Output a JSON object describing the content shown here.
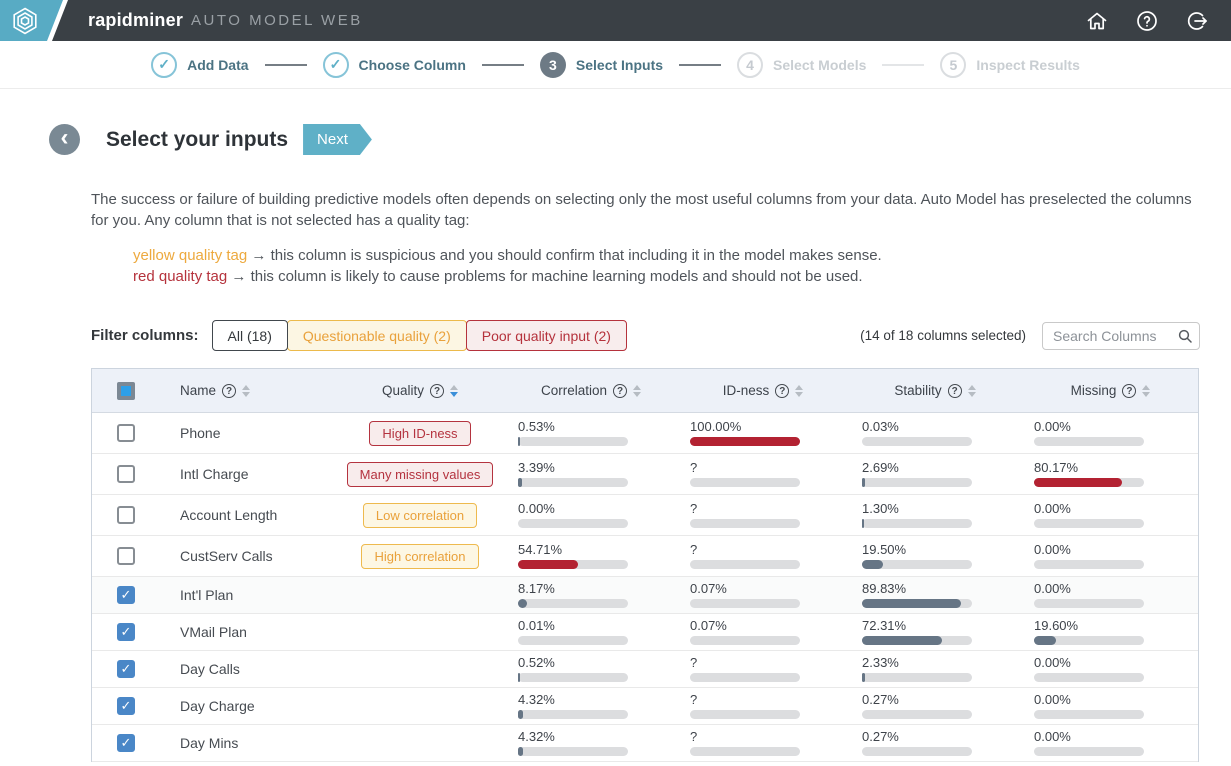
{
  "app": {
    "brand": "rapidminer",
    "brand_suffix": "AUTO MODEL WEB",
    "topbar_icons": [
      "home-icon",
      "help-icon",
      "sign-out-icon"
    ]
  },
  "stepper": {
    "steps": [
      {
        "label": "Add Data",
        "state": "done"
      },
      {
        "label": "Choose Column",
        "state": "done"
      },
      {
        "label": "Select Inputs",
        "state": "current",
        "number": "3"
      },
      {
        "label": "Select Models",
        "state": "pending",
        "number": "4"
      },
      {
        "label": "Inspect Results",
        "state": "pending",
        "number": "5"
      }
    ]
  },
  "page": {
    "title": "Select your inputs",
    "next_label": "Next",
    "description": "The success or failure of building predictive models often depends on selecting only the most useful columns from your data. Auto Model has preselected the columns for you. Any column that is not selected has a quality tag:",
    "legend": [
      {
        "tag": "yellow quality tag",
        "type": "yellow",
        "text": " → this column is suspicious and you should confirm that including it in the model makes sense."
      },
      {
        "tag": "red quality tag",
        "type": "red",
        "text": " → this column is likely to cause problems for machine learning models and should not be used."
      }
    ]
  },
  "filter": {
    "label": "Filter columns:",
    "buttons": [
      {
        "label": "All (18)",
        "type": "all",
        "selected": true
      },
      {
        "label": "Questionable quality (2)",
        "type": "yellow",
        "selected": false
      },
      {
        "label": "Poor quality input (2)",
        "type": "red",
        "selected": false
      }
    ],
    "selection_summary": "(14 of 18 columns selected)",
    "search_placeholder": "Search Columns"
  },
  "table": {
    "headers": [
      {
        "label": "Name"
      },
      {
        "label": "Quality",
        "sorted": "desc"
      },
      {
        "label": "Correlation"
      },
      {
        "label": "ID-ness"
      },
      {
        "label": "Stability"
      },
      {
        "label": "Missing"
      }
    ],
    "header_checkbox_state": "indeterminate",
    "rows": [
      {
        "name": "Phone",
        "checked": false,
        "tag": {
          "label": "High ID-ness",
          "type": "red"
        },
        "metrics": {
          "correlation": {
            "value": "0.53%",
            "pct": 0.53
          },
          "idness": {
            "value": "100.00%",
            "pct": 100,
            "color": "red"
          },
          "stability": {
            "value": "0.03%",
            "pct": 0.03
          },
          "missing": {
            "value": "0.00%",
            "pct": 0
          }
        }
      },
      {
        "name": "Intl Charge",
        "checked": false,
        "tag": {
          "label": "Many missing values",
          "type": "red"
        },
        "metrics": {
          "correlation": {
            "value": "3.39%",
            "pct": 3.39
          },
          "idness": {
            "value": "?",
            "pct": null
          },
          "stability": {
            "value": "2.69%",
            "pct": 2.69
          },
          "missing": {
            "value": "80.17%",
            "pct": 80.17,
            "color": "red"
          }
        }
      },
      {
        "name": "Account Length",
        "checked": false,
        "tag": {
          "label": "Low correlation",
          "type": "yellow"
        },
        "metrics": {
          "correlation": {
            "value": "0.00%",
            "pct": 0
          },
          "idness": {
            "value": "?",
            "pct": null
          },
          "stability": {
            "value": "1.30%",
            "pct": 1.3
          },
          "missing": {
            "value": "0.00%",
            "pct": 0
          }
        }
      },
      {
        "name": "CustServ Calls",
        "checked": false,
        "tag": {
          "label": "High correlation",
          "type": "yellow"
        },
        "metrics": {
          "correlation": {
            "value": "54.71%",
            "pct": 54.71,
            "color": "red"
          },
          "idness": {
            "value": "?",
            "pct": null
          },
          "stability": {
            "value": "19.50%",
            "pct": 19.5
          },
          "missing": {
            "value": "0.00%",
            "pct": 0
          }
        }
      },
      {
        "name": "Int'l Plan",
        "checked": true,
        "tag": null,
        "highlight": true,
        "metrics": {
          "correlation": {
            "value": "8.17%",
            "pct": 8.17
          },
          "idness": {
            "value": "0.07%",
            "pct": 0.07
          },
          "stability": {
            "value": "89.83%",
            "pct": 89.83
          },
          "missing": {
            "value": "0.00%",
            "pct": 0
          }
        }
      },
      {
        "name": "VMail Plan",
        "checked": true,
        "tag": null,
        "metrics": {
          "correlation": {
            "value": "0.01%",
            "pct": 0.01
          },
          "idness": {
            "value": "0.07%",
            "pct": 0.07
          },
          "stability": {
            "value": "72.31%",
            "pct": 72.31
          },
          "missing": {
            "value": "19.60%",
            "pct": 19.6
          }
        }
      },
      {
        "name": "Day Calls",
        "checked": true,
        "tag": null,
        "metrics": {
          "correlation": {
            "value": "0.52%",
            "pct": 0.52
          },
          "idness": {
            "value": "?",
            "pct": null
          },
          "stability": {
            "value": "2.33%",
            "pct": 2.33
          },
          "missing": {
            "value": "0.00%",
            "pct": 0
          }
        }
      },
      {
        "name": "Day Charge",
        "checked": true,
        "tag": null,
        "metrics": {
          "correlation": {
            "value": "4.32%",
            "pct": 4.32
          },
          "idness": {
            "value": "?",
            "pct": null
          },
          "stability": {
            "value": "0.27%",
            "pct": 0.27
          },
          "missing": {
            "value": "0.00%",
            "pct": 0
          }
        }
      },
      {
        "name": "Day Mins",
        "checked": true,
        "tag": null,
        "metrics": {
          "correlation": {
            "value": "4.32%",
            "pct": 4.32
          },
          "idness": {
            "value": "?",
            "pct": null
          },
          "stability": {
            "value": "0.27%",
            "pct": 0.27
          },
          "missing": {
            "value": "0.00%",
            "pct": 0
          }
        }
      }
    ]
  },
  "colors": {
    "topbar_bg": "#3a4045",
    "accent_teal": "#5fb0c7",
    "logo_teal": "#58abc4",
    "yellow_tag": "#e9a13b",
    "red_tag": "#b4333f",
    "bar_red": "#b32232",
    "bar_slate": "#667585",
    "checkbox_blue": "#4a87c7",
    "sort_active_blue": "#3a8fd9",
    "header_bg": "#edf1f8"
  }
}
